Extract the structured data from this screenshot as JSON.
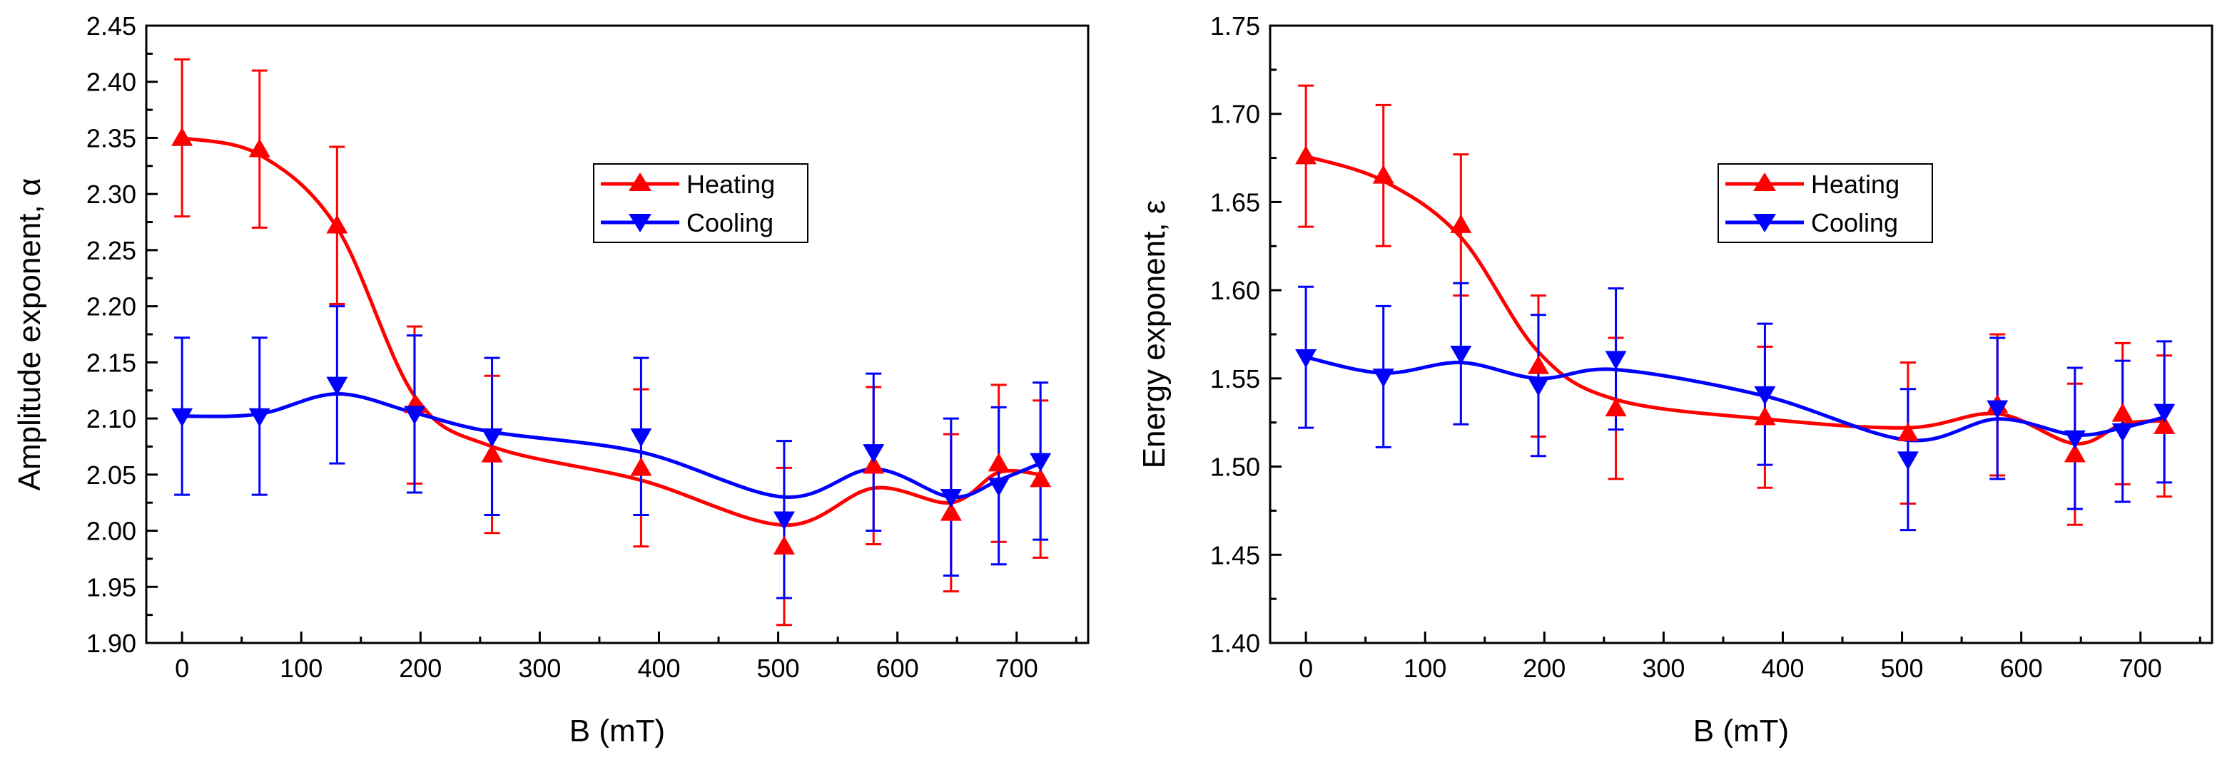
{
  "chart_data": [
    {
      "type": "line",
      "xlabel": "B (mT)",
      "ylabel": "Amplitude exponent, α",
      "xlim": [
        -30,
        760
      ],
      "ylim": [
        1.9,
        2.45
      ],
      "xticks": [
        0,
        100,
        200,
        300,
        400,
        500,
        600,
        700
      ],
      "xtick_labels": [
        "0",
        "100",
        "200",
        "300",
        "400",
        "500",
        "600",
        "700"
      ],
      "yticks": [
        1.9,
        1.95,
        2.0,
        2.05,
        2.1,
        2.15,
        2.2,
        2.25,
        2.3,
        2.35,
        2.4,
        2.45
      ],
      "ytick_labels": [
        "1.90",
        "1.95",
        "2.00",
        "2.05",
        "2.10",
        "2.15",
        "2.20",
        "2.25",
        "2.30",
        "2.35",
        "2.40",
        "2.45"
      ],
      "legend": "inside upper-center",
      "x": [
        0,
        65,
        130,
        195,
        260,
        385,
        505,
        580,
        645,
        685,
        720
      ],
      "series": [
        {
          "name": "Heating",
          "color": "#ff0000",
          "marker": "triangle-up",
          "values": [
            2.35,
            2.34,
            2.272,
            2.112,
            2.068,
            2.056,
            1.986,
            2.058,
            2.016,
            2.06,
            2.046
          ],
          "errors": [
            0.07,
            0.07,
            0.07,
            0.07,
            0.07,
            0.07,
            0.07,
            0.07,
            0.07,
            0.07,
            0.07
          ],
          "curve": [
            [
              0,
              2.35
            ],
            [
              65,
              2.335
            ],
            [
              130,
              2.27
            ],
            [
              195,
              2.12
            ],
            [
              260,
              2.075
            ],
            [
              385,
              2.045
            ],
            [
              505,
              2.005
            ],
            [
              580,
              2.038
            ],
            [
              645,
              2.025
            ],
            [
              685,
              2.052
            ],
            [
              720,
              2.05
            ]
          ]
        },
        {
          "name": "Cooling",
          "color": "#0000ff",
          "marker": "triangle-down",
          "values": [
            2.102,
            2.102,
            2.13,
            2.104,
            2.084,
            2.084,
            2.01,
            2.07,
            2.03,
            2.04,
            2.062
          ],
          "errors": [
            0.07,
            0.07,
            0.07,
            0.07,
            0.07,
            0.07,
            0.07,
            0.07,
            0.07,
            0.07,
            0.07
          ],
          "curve": [
            [
              0,
              2.102
            ],
            [
              65,
              2.104
            ],
            [
              130,
              2.122
            ],
            [
              195,
              2.105
            ],
            [
              260,
              2.088
            ],
            [
              385,
              2.07
            ],
            [
              505,
              2.03
            ],
            [
              580,
              2.055
            ],
            [
              645,
              2.03
            ],
            [
              685,
              2.045
            ],
            [
              720,
              2.06
            ]
          ]
        }
      ]
    },
    {
      "type": "line",
      "xlabel": "B (mT)",
      "ylabel": "Energy exponent, ε",
      "xlim": [
        -30,
        760
      ],
      "ylim": [
        1.4,
        1.75
      ],
      "xticks": [
        0,
        100,
        200,
        300,
        400,
        500,
        600,
        700
      ],
      "xtick_labels": [
        "0",
        "100",
        "200",
        "300",
        "400",
        "500",
        "600",
        "700"
      ],
      "yticks": [
        1.4,
        1.45,
        1.5,
        1.55,
        1.6,
        1.65,
        1.7,
        1.75
      ],
      "ytick_labels": [
        "1.40",
        "1.45",
        "1.50",
        "1.55",
        "1.60",
        "1.65",
        "1.70",
        "1.75"
      ],
      "legend": "inside upper-center",
      "x": [
        0,
        65,
        130,
        195,
        260,
        385,
        505,
        580,
        645,
        685,
        720
      ],
      "series": [
        {
          "name": "Heating",
          "color": "#ff0000",
          "marker": "triangle-up",
          "values": [
            1.676,
            1.665,
            1.637,
            1.557,
            1.533,
            1.528,
            1.519,
            1.535,
            1.507,
            1.53,
            1.523
          ],
          "errors": [
            0.04,
            0.04,
            0.04,
            0.04,
            0.04,
            0.04,
            0.04,
            0.04,
            0.04,
            0.04,
            0.04
          ],
          "curve": [
            [
              0,
              1.676
            ],
            [
              65,
              1.662
            ],
            [
              130,
              1.63
            ],
            [
              195,
              1.565
            ],
            [
              260,
              1.538
            ],
            [
              385,
              1.527
            ],
            [
              505,
              1.522
            ],
            [
              580,
              1.53
            ],
            [
              645,
              1.513
            ],
            [
              685,
              1.524
            ],
            [
              720,
              1.526
            ]
          ]
        },
        {
          "name": "Cooling",
          "color": "#0000ff",
          "marker": "triangle-down",
          "values": [
            1.562,
            1.551,
            1.564,
            1.546,
            1.561,
            1.541,
            1.504,
            1.533,
            1.516,
            1.52,
            1.531
          ],
          "errors": [
            0.04,
            0.04,
            0.04,
            0.04,
            0.04,
            0.04,
            0.04,
            0.04,
            0.04,
            0.04,
            0.04
          ],
          "curve": [
            [
              0,
              1.562
            ],
            [
              65,
              1.553
            ],
            [
              130,
              1.559
            ],
            [
              195,
              1.55
            ],
            [
              260,
              1.555
            ],
            [
              385,
              1.54
            ],
            [
              505,
              1.515
            ],
            [
              580,
              1.527
            ],
            [
              645,
              1.518
            ],
            [
              685,
              1.522
            ],
            [
              720,
              1.528
            ]
          ]
        }
      ]
    }
  ]
}
